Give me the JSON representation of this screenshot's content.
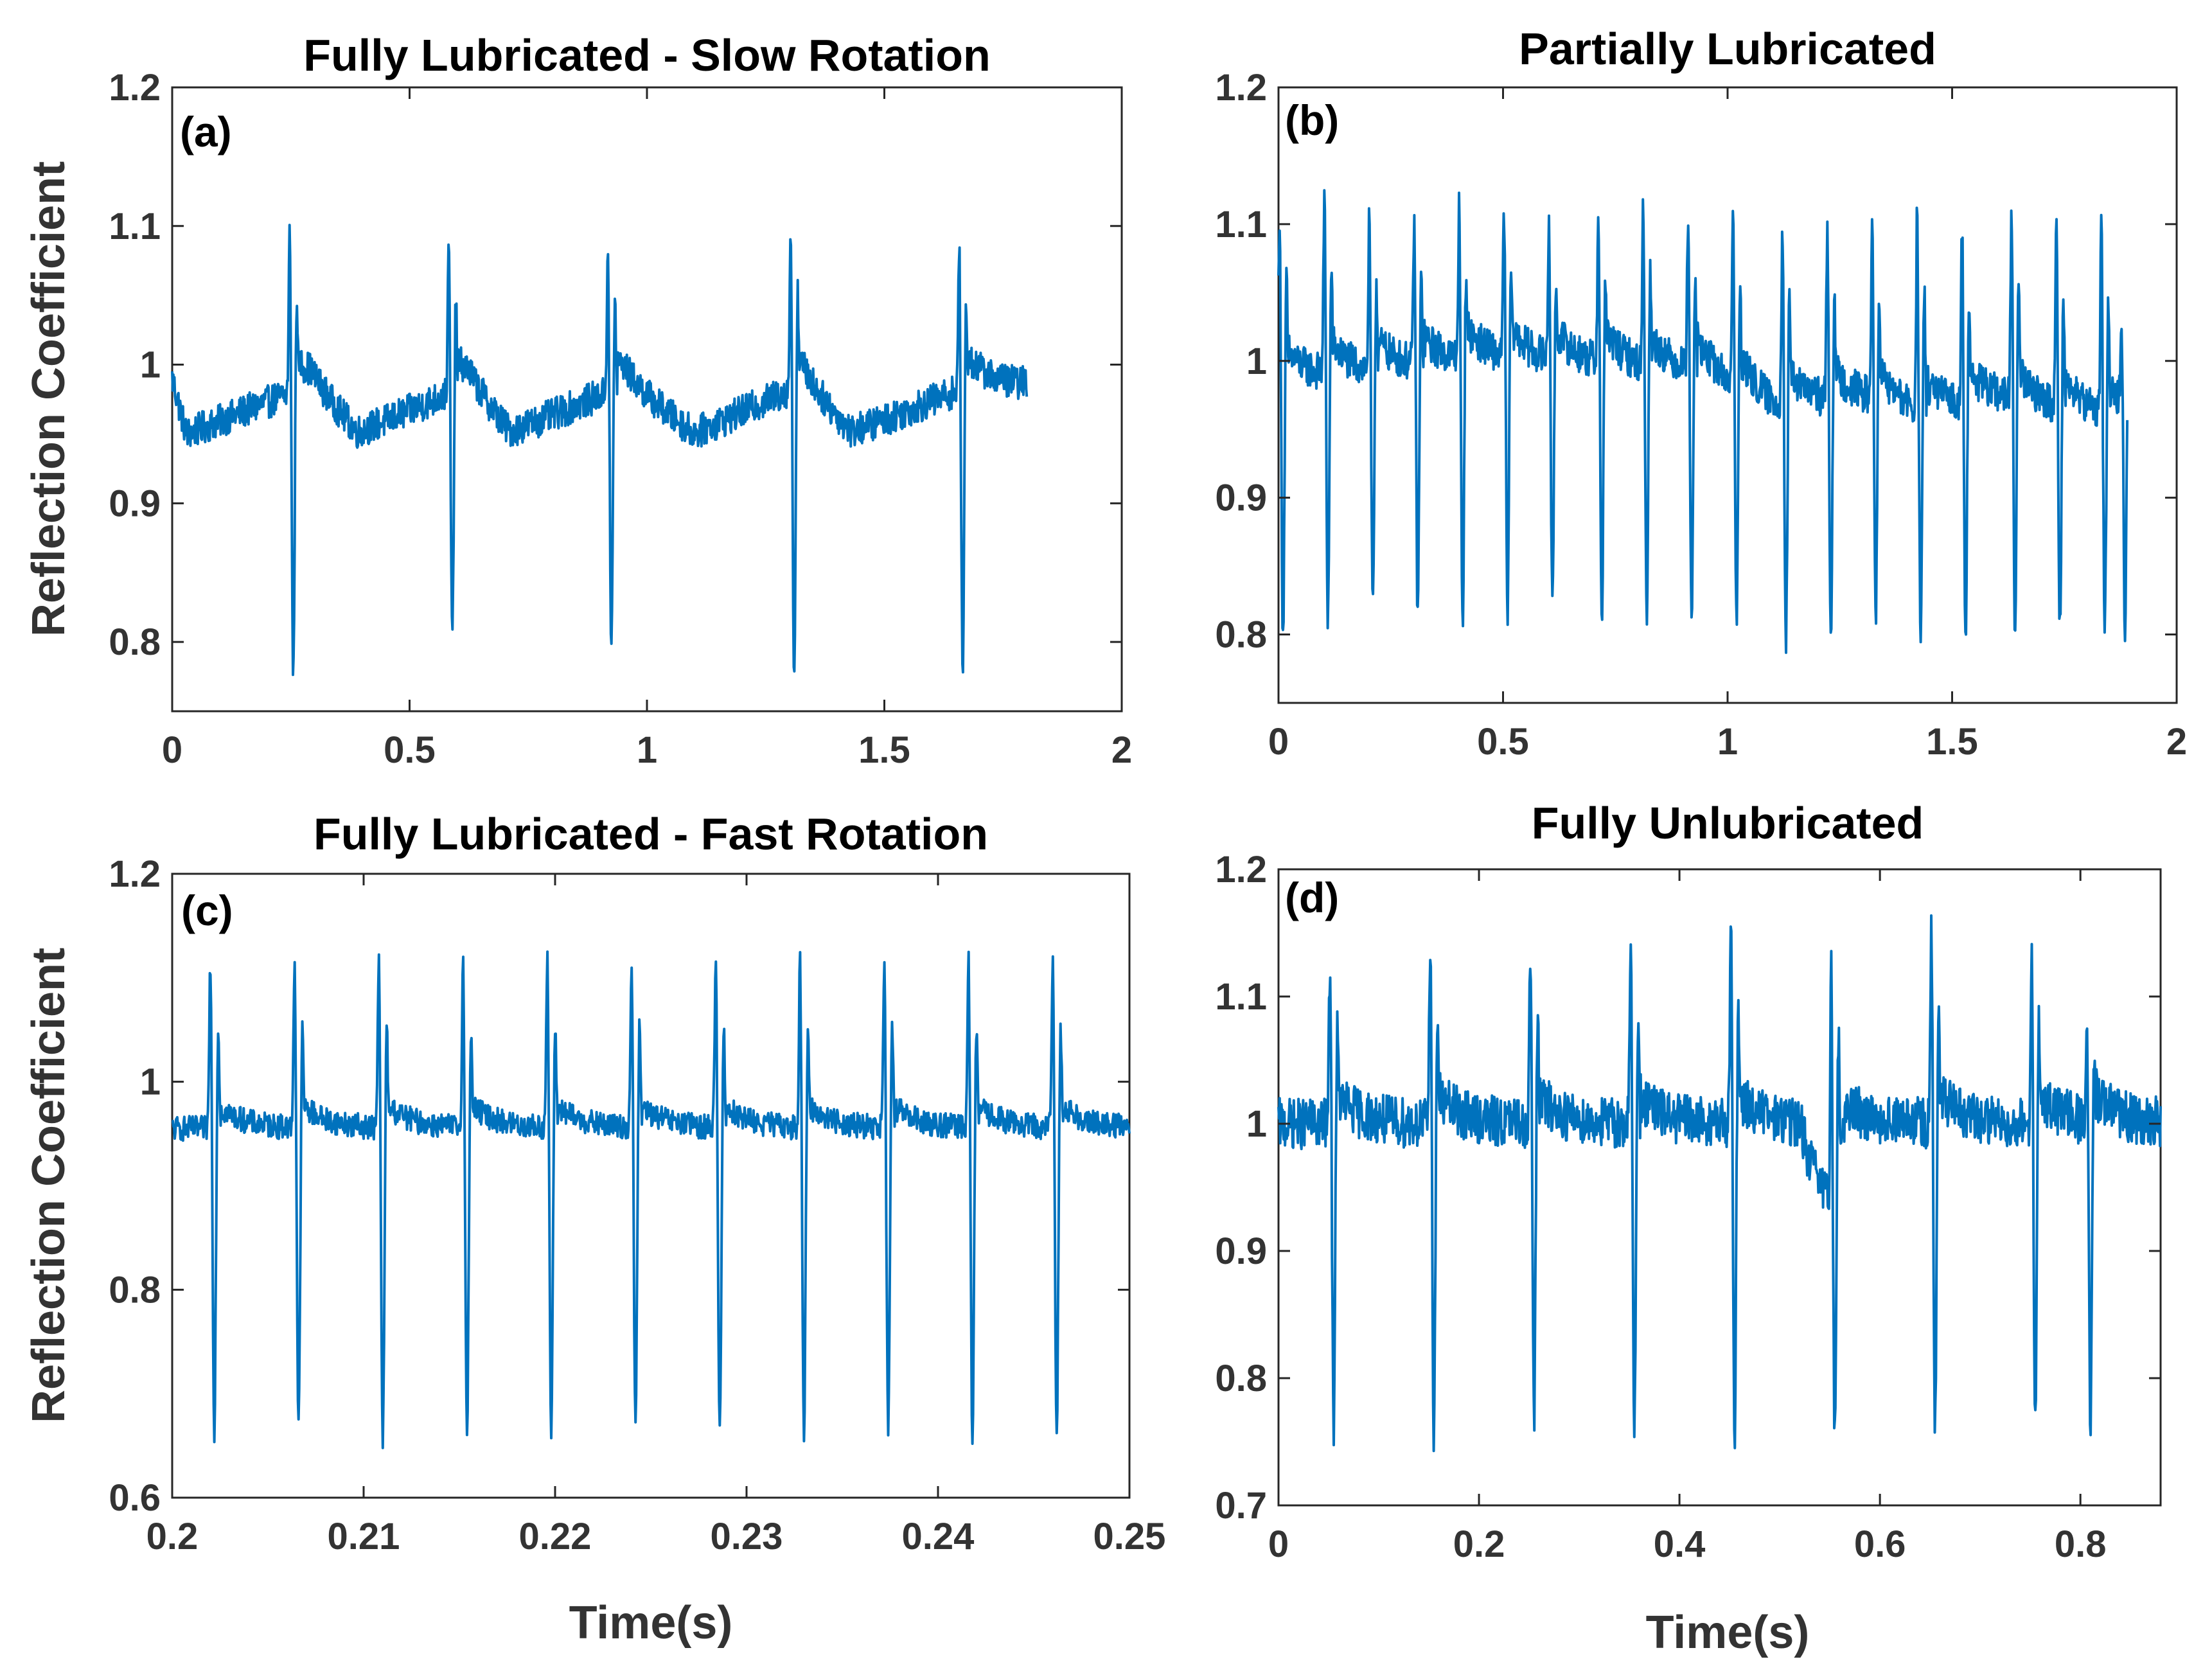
{
  "chart_data": [
    {
      "id": "a",
      "type": "line",
      "title": "Fully Lubricated - Slow Rotation",
      "panel_label": "(a)",
      "xlabel": "",
      "ylabel": "Reflection Coefficient",
      "xlim": [
        0,
        2
      ],
      "ylim": [
        0.75,
        1.2
      ],
      "xticks": [
        0,
        0.5,
        1,
        1.5,
        2
      ],
      "xtick_labels": [
        "0",
        "0.5",
        "1",
        "1.5",
        "2"
      ],
      "yticks": [
        0.8,
        0.9,
        1.0,
        1.1,
        1.2
      ],
      "ytick_labels": [
        "0.8",
        "0.9",
        "1",
        "1.1",
        "1.2"
      ],
      "series": [
        {
          "name": "Reflection Coefficient",
          "color": "#0072BD",
          "t_end": 1.8,
          "noise_amplitude": 0.012,
          "segments": [
            [
              0,
              0.99
            ],
            [
              0.03,
              0.95
            ],
            [
              0.29,
              0.985
            ],
            [
              0.39,
              0.95
            ],
            [
              0.62,
              0.985
            ],
            [
              0.71,
              0.95
            ],
            [
              0.95,
              0.985
            ],
            [
              1.1,
              0.95
            ],
            [
              1.32,
              0.985
            ],
            [
              1.43,
              0.95
            ],
            [
              1.68,
              0.985
            ],
            [
              1.8,
              0.985
            ]
          ],
          "spikes": [
            {
              "t": 0.255,
              "peak": 1.1,
              "trough": 0.775
            },
            {
              "t": 0.59,
              "peak": 1.09,
              "trough": 0.8
            },
            {
              "t": 0.925,
              "peak": 1.09,
              "trough": 0.79
            },
            {
              "t": 1.31,
              "peak": 1.1,
              "trough": 0.775
            },
            {
              "t": 1.665,
              "peak": 1.09,
              "trough": 0.775
            }
          ]
        }
      ]
    },
    {
      "id": "b",
      "type": "line",
      "title": "Partially Lubricated",
      "panel_label": "(b)",
      "xlabel": "",
      "ylabel": "",
      "xlim": [
        0,
        2
      ],
      "ylim": [
        0.75,
        1.2
      ],
      "xticks": [
        0,
        0.5,
        1,
        1.5,
        2
      ],
      "xtick_labels": [
        "0",
        "0.5",
        "1",
        "1.5",
        "2"
      ],
      "yticks": [
        0.8,
        0.9,
        1.0,
        1.1,
        1.2
      ],
      "ytick_labels": [
        "0.8",
        "0.9",
        "1",
        "1.1",
        "1.2"
      ],
      "series": [
        {
          "name": "Reflection Coefficient",
          "color": "#0072BD",
          "t_end": 1.89,
          "noise_amplitude": 0.014,
          "segments": [
            [
              0,
              0.985
            ],
            [
              0.2,
              0.99
            ],
            [
              0.45,
              1.0
            ],
            [
              0.75,
              0.995
            ],
            [
              0.95,
              0.99
            ],
            [
              1.1,
              0.965
            ],
            [
              1.3,
              0.97
            ],
            [
              1.42,
              0.96
            ],
            [
              1.6,
              0.97
            ],
            [
              1.89,
              0.955
            ]
          ],
          "spikes": [
            {
              "t": 0.01,
              "peak": 1.11,
              "trough": 0.8
            },
            {
              "t": 0.11,
              "peak": 1.12,
              "trough": 0.81
            },
            {
              "t": 0.21,
              "peak": 1.1,
              "trough": 0.81
            },
            {
              "t": 0.31,
              "peak": 1.1,
              "trough": 0.81
            },
            {
              "t": 0.41,
              "peak": 1.11,
              "trough": 0.8
            },
            {
              "t": 0.51,
              "peak": 1.11,
              "trough": 0.81
            },
            {
              "t": 0.61,
              "peak": 1.1,
              "trough": 0.81
            },
            {
              "t": 0.72,
              "peak": 1.11,
              "trough": 0.8
            },
            {
              "t": 0.82,
              "peak": 1.11,
              "trough": 0.81
            },
            {
              "t": 0.92,
              "peak": 1.11,
              "trough": 0.8
            },
            {
              "t": 1.02,
              "peak": 1.11,
              "trough": 0.8
            },
            {
              "t": 1.13,
              "peak": 1.1,
              "trough": 0.79
            },
            {
              "t": 1.23,
              "peak": 1.1,
              "trough": 0.8
            },
            {
              "t": 1.33,
              "peak": 1.1,
              "trough": 0.81
            },
            {
              "t": 1.43,
              "peak": 1.11,
              "trough": 0.79
            },
            {
              "t": 1.53,
              "peak": 1.1,
              "trough": 0.8
            },
            {
              "t": 1.64,
              "peak": 1.11,
              "trough": 0.8
            },
            {
              "t": 1.74,
              "peak": 1.1,
              "trough": 0.8
            },
            {
              "t": 1.84,
              "peak": 1.1,
              "trough": 0.8
            },
            {
              "t": 1.885,
              "peak": 1.02,
              "trough": 0.79
            }
          ]
        }
      ]
    },
    {
      "id": "c",
      "type": "line",
      "title": "Fully Lubricated - Fast Rotation",
      "panel_label": "(c)",
      "xlabel": "Time(s)",
      "ylabel": "Reflection Coefficient",
      "xlim": [
        0.2,
        0.25
      ],
      "ylim": [
        0.6,
        1.2
      ],
      "xticks": [
        0.2,
        0.21,
        0.22,
        0.23,
        0.24,
        0.25
      ],
      "xtick_labels": [
        "0.2",
        "0.21",
        "0.22",
        "0.23",
        "0.24",
        "0.25"
      ],
      "yticks": [
        0.6,
        0.8,
        1.0,
        1.2
      ],
      "ytick_labels": [
        "0.6",
        "0.8",
        "1",
        "1.2"
      ],
      "series": [
        {
          "name": "Reflection Coefficient",
          "color": "#0072BD",
          "t_start": 0.2,
          "t_end": 0.25,
          "noise_amplitude": 0.012,
          "segments": [
            [
              0.2,
              0.955
            ],
            [
              0.25,
              0.955
            ]
          ],
          "spikes": [
            {
              "t": 0.2022,
              "peak": 1.12,
              "trough": 0.665
            },
            {
              "t": 0.2066,
              "peak": 1.12,
              "trough": 0.665
            },
            {
              "t": 0.211,
              "peak": 1.12,
              "trough": 0.65
            },
            {
              "t": 0.2154,
              "peak": 1.12,
              "trough": 0.655
            },
            {
              "t": 0.2198,
              "peak": 1.12,
              "trough": 0.66
            },
            {
              "t": 0.2242,
              "peak": 1.12,
              "trough": 0.66
            },
            {
              "t": 0.2286,
              "peak": 1.12,
              "trough": 0.66
            },
            {
              "t": 0.233,
              "peak": 1.12,
              "trough": 0.655
            },
            {
              "t": 0.2374,
              "peak": 1.12,
              "trough": 0.66
            },
            {
              "t": 0.2418,
              "peak": 1.12,
              "trough": 0.655
            },
            {
              "t": 0.2462,
              "peak": 1.12,
              "trough": 0.655
            }
          ]
        }
      ]
    },
    {
      "id": "d",
      "type": "line",
      "title": "Fully Unlubricated",
      "panel_label": "(d)",
      "xlabel": "Time(s)",
      "ylabel": "",
      "xlim": [
        0,
        0.88
      ],
      "ylim": [
        0.7,
        1.2
      ],
      "xticks": [
        0,
        0.2,
        0.4,
        0.6,
        0.8
      ],
      "xtick_labels": [
        "0",
        "0.2",
        "0.4",
        "0.6",
        "0.8"
      ],
      "yticks": [
        0.7,
        0.8,
        0.9,
        1.0,
        1.1,
        1.2
      ],
      "ytick_labels": [
        "0.7",
        "0.8",
        "0.9",
        "1",
        "1.1",
        "1.2"
      ],
      "series": [
        {
          "name": "Reflection Coefficient",
          "color": "#0072BD",
          "t_end": 0.88,
          "noise_amplitude": 0.02,
          "segments": [
            [
              0,
              1.0
            ],
            [
              0.52,
              1.0
            ],
            [
              0.53,
              0.97
            ],
            [
              0.55,
              0.935
            ],
            [
              0.57,
              1.0
            ],
            [
              0.88,
              1.0
            ]
          ],
          "spikes": [
            {
              "t": 0.055,
              "peak": 1.13,
              "trough": 0.765
            },
            {
              "t": 0.155,
              "peak": 1.15,
              "trough": 0.76
            },
            {
              "t": 0.255,
              "peak": 1.14,
              "trough": 0.77
            },
            {
              "t": 0.355,
              "peak": 1.14,
              "trough": 0.76
            },
            {
              "t": 0.455,
              "peak": 1.15,
              "trough": 0.755
            },
            {
              "t": 0.555,
              "peak": 1.14,
              "trough": 0.76
            },
            {
              "t": 0.655,
              "peak": 1.15,
              "trough": 0.755
            },
            {
              "t": 0.755,
              "peak": 1.14,
              "trough": 0.755
            },
            {
              "t": 0.81,
              "peak": 1.09,
              "trough": 0.755
            }
          ]
        }
      ]
    }
  ]
}
